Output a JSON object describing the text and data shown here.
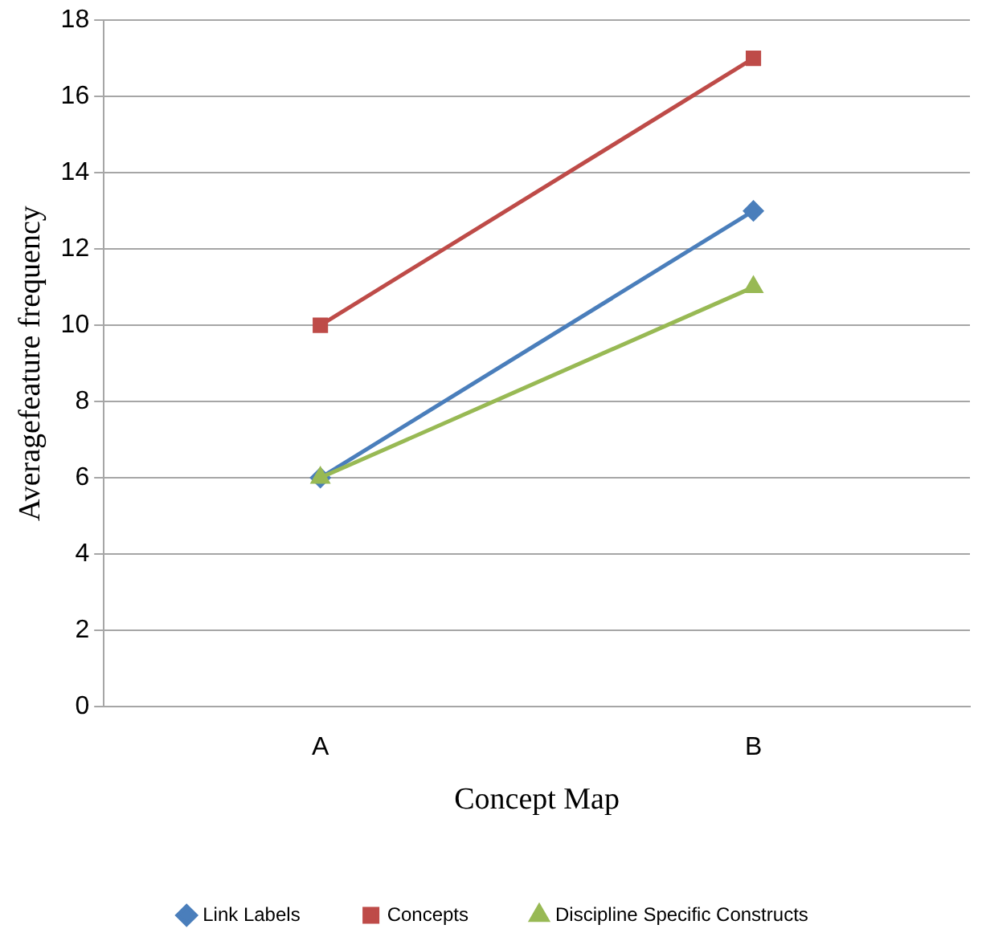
{
  "chart_data": {
    "type": "line",
    "xlabel": "Concept Map",
    "ylabel": "Averagefeature frequency",
    "categories": [
      "A",
      "B"
    ],
    "series": [
      {
        "name": "Link Labels",
        "color": "#4a7ebb",
        "values": [
          6,
          13
        ],
        "marker": "diamond"
      },
      {
        "name": "Concepts",
        "color": "#be4b48",
        "values": [
          10,
          17
        ],
        "marker": "square"
      },
      {
        "name": "Discipline Specific Constructs",
        "color": "#98b954",
        "values": [
          6,
          11
        ],
        "marker": "triangle"
      }
    ],
    "ylim": [
      0,
      18
    ],
    "yticks": [
      0,
      2,
      4,
      6,
      8,
      10,
      12,
      14,
      16,
      18
    ],
    "grid": "y",
    "legend": "bottom"
  }
}
